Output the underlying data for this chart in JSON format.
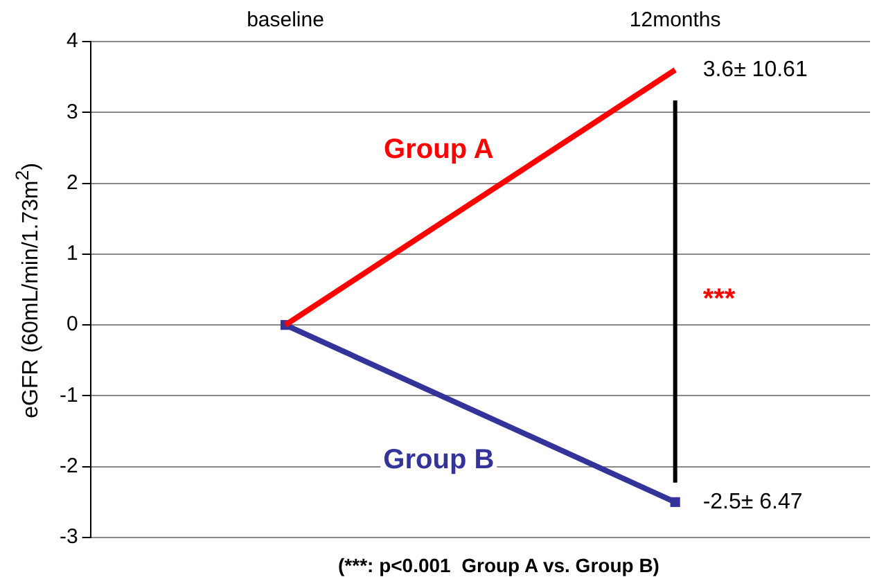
{
  "chart_data": {
    "type": "line",
    "ylabel": "eGFR (60mL/min/1.73m$^{2}$)",
    "categories": [
      "baseline",
      "12months"
    ],
    "series": [
      {
        "name": "Group A",
        "color": "#ff0000",
        "values": [
          0,
          3.6
        ],
        "value_labels": [
          null,
          "3.6± 10.61"
        ],
        "marker": "none"
      },
      {
        "name": "Group B",
        "color": "#333399",
        "values": [
          0,
          -2.5
        ],
        "value_labels": [
          null,
          "-2.5± 6.47"
        ],
        "marker": "square"
      }
    ],
    "ylim": [
      -3,
      4
    ],
    "yticks": [
      -3,
      -2,
      -1,
      0,
      1,
      2,
      3,
      4
    ],
    "grid": "y",
    "legend": false,
    "annotations": [
      "***",
      "(***: p<0.001  Group A vs. Group B)"
    ]
  }
}
